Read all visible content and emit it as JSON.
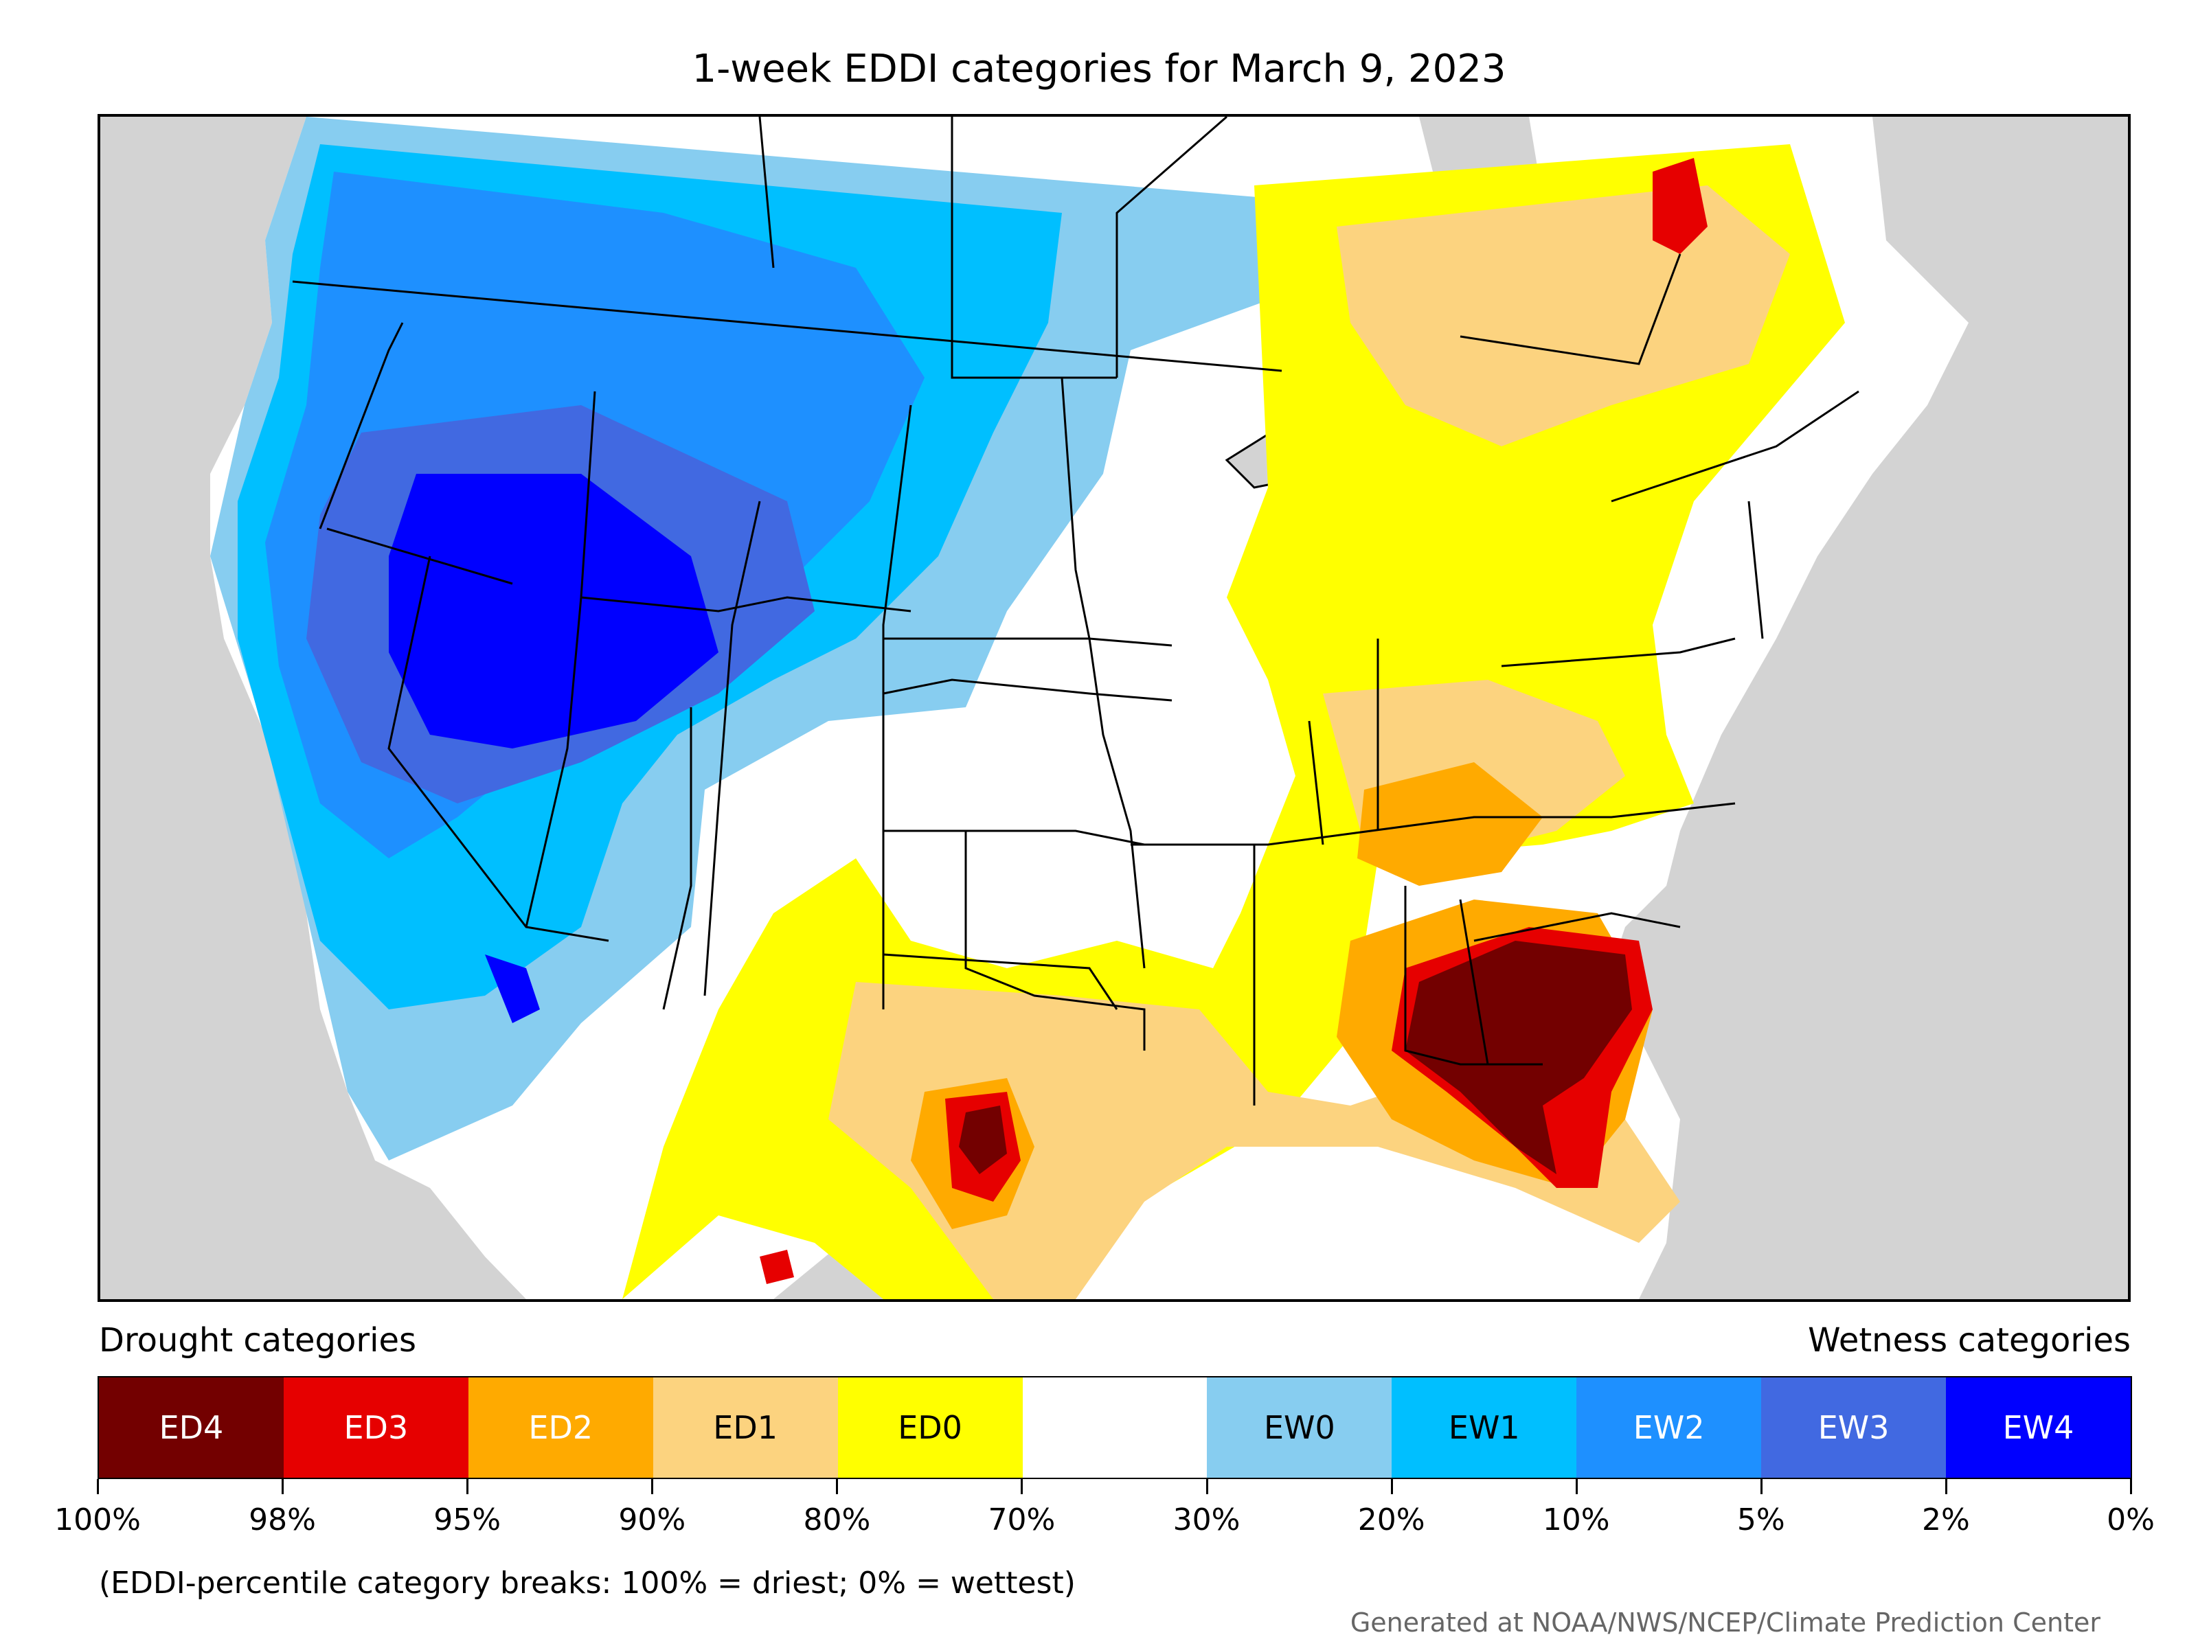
{
  "title": "1-week EDDI categories for March 9, 2023",
  "legend": {
    "drought_heading": "Drought categories",
    "wetness_heading": "Wetness categories",
    "categories": [
      {
        "label": "ED4",
        "color": "#730000",
        "text_color": "#ffffff"
      },
      {
        "label": "ED3",
        "color": "#e60000",
        "text_color": "#ffffff"
      },
      {
        "label": "ED2",
        "color": "#ffaa00",
        "text_color": "#ffffff"
      },
      {
        "label": "ED1",
        "color": "#fcd37f",
        "text_color": "#000000"
      },
      {
        "label": "ED0",
        "color": "#ffff00",
        "text_color": "#000000"
      },
      {
        "label": "",
        "color": "#ffffff",
        "text_color": "#000000"
      },
      {
        "label": "EW0",
        "color": "#87cdf0",
        "text_color": "#000000"
      },
      {
        "label": "EW1",
        "color": "#00bfff",
        "text_color": "#000000"
      },
      {
        "label": "EW2",
        "color": "#1e90ff",
        "text_color": "#ffffff"
      },
      {
        "label": "EW3",
        "color": "#4169e1",
        "text_color": "#ffffff"
      },
      {
        "label": "EW4",
        "color": "#0000ff",
        "text_color": "#ffffff"
      }
    ],
    "tick_labels": [
      "100%",
      "98%",
      "95%",
      "90%",
      "80%",
      "70%",
      "30%",
      "20%",
      "10%",
      "5%",
      "2%",
      "0%"
    ]
  },
  "note": "(EDDI-percentile category breaks: 100% = driest; 0% = wettest)",
  "credit": "Generated at NOAA/NWS/NCEP/Climate Prediction Center",
  "map": {
    "background_color": "#d3d3d3",
    "land_color": "#ffffff",
    "boundary_color": "#000000"
  }
}
